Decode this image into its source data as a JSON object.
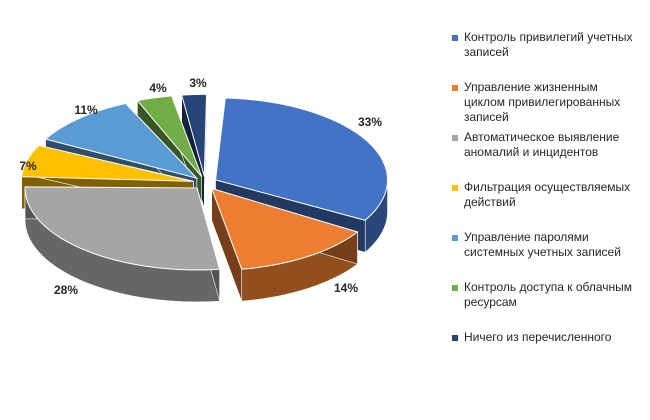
{
  "chart_data": {
    "type": "pie",
    "style": "3d-exploded",
    "title": "",
    "legend_position": "right",
    "categories": [
      "Контроль привилегий учетных записей",
      "Управление жизненным циклом привилегированных записей",
      "Автоматическое выявление аномалий и инцидентов",
      "Фильтрация осуществляемых действий",
      "Управление паролями системных учетных записей",
      "Контроль доступа к облачным ресурсам",
      "Ничего из перечисленного"
    ],
    "legend_lines": [
      [
        "Контроль привилегий учетных",
        "записей"
      ],
      [
        "Управление жизненным",
        "циклом привилегированных",
        "записей"
      ],
      [
        "Автоматическое выявление",
        "аномалий и инцидентов"
      ],
      [
        "Фильтрация осуществляемых",
        "действий"
      ],
      [
        "Управление паролями",
        "системных учетных записей"
      ],
      [
        "Контроль доступа к облачным",
        "ресурсам"
      ],
      [
        "Ничего из перечисленного"
      ]
    ],
    "values": [
      33,
      14,
      28,
      7,
      11,
      4,
      3
    ],
    "labels": [
      "33%",
      "14%",
      "28%",
      "7%",
      "11%",
      "4%",
      "3%"
    ],
    "colors": [
      "#4472C4",
      "#ED7D31",
      "#A5A5A5",
      "#FFC000",
      "#5B9BD5",
      "#70AD47",
      "#264478"
    ]
  }
}
